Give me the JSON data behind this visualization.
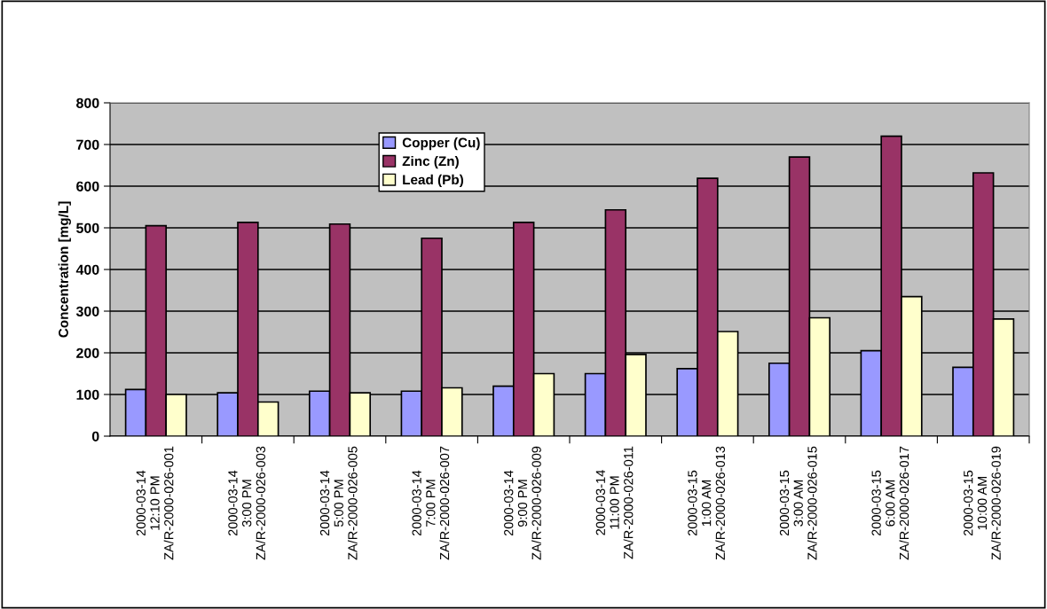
{
  "chart_data": {
    "type": "bar",
    "ylabel": "Concentration [mg/L]",
    "categories": [
      "2000-03-14\n12:10 PM\nZA/R-2000-026-001",
      "2000-03-14\n3:00 PM\nZA/R-2000-026-003",
      "2000-03-14\n5:00 PM\nZA/R-2000-026-005",
      "2000-03-14\n7:00 PM\nZA/R-2000-026-007",
      "2000-03-14\n9:00 PM\nZA/R-2000-026-009",
      "2000-03-14\n11:00 PM\nZA/R-2000-026-011",
      "2000-03-15\n1:00 AM\nZA/R-2000-026-013",
      "2000-03-15\n3:00 AM\nZA/R-2000-026-015",
      "2000-03-15\n6:00 AM\nZA/R-2000-026-017",
      "2000-03-15\n10:00 AM\nZA/R-2000-026-019"
    ],
    "series": [
      {
        "name": "Copper (Cu)",
        "color": "#9999ff",
        "values": [
          112,
          104,
          108,
          108,
          120,
          150,
          162,
          175,
          205,
          165
        ]
      },
      {
        "name": "Zinc (Zn)",
        "color": "#993366",
        "values": [
          505,
          513,
          509,
          475,
          513,
          543,
          619,
          670,
          720,
          632
        ]
      },
      {
        "name": "Lead (Pb)",
        "color": "#ffffcc",
        "values": [
          100,
          82,
          104,
          116,
          150,
          196,
          251,
          284,
          335,
          281
        ]
      }
    ],
    "ylim": [
      0,
      800
    ],
    "yticks": [
      0,
      100,
      200,
      300,
      400,
      500,
      600,
      700,
      800
    ],
    "grid": "y",
    "legend": "top"
  }
}
